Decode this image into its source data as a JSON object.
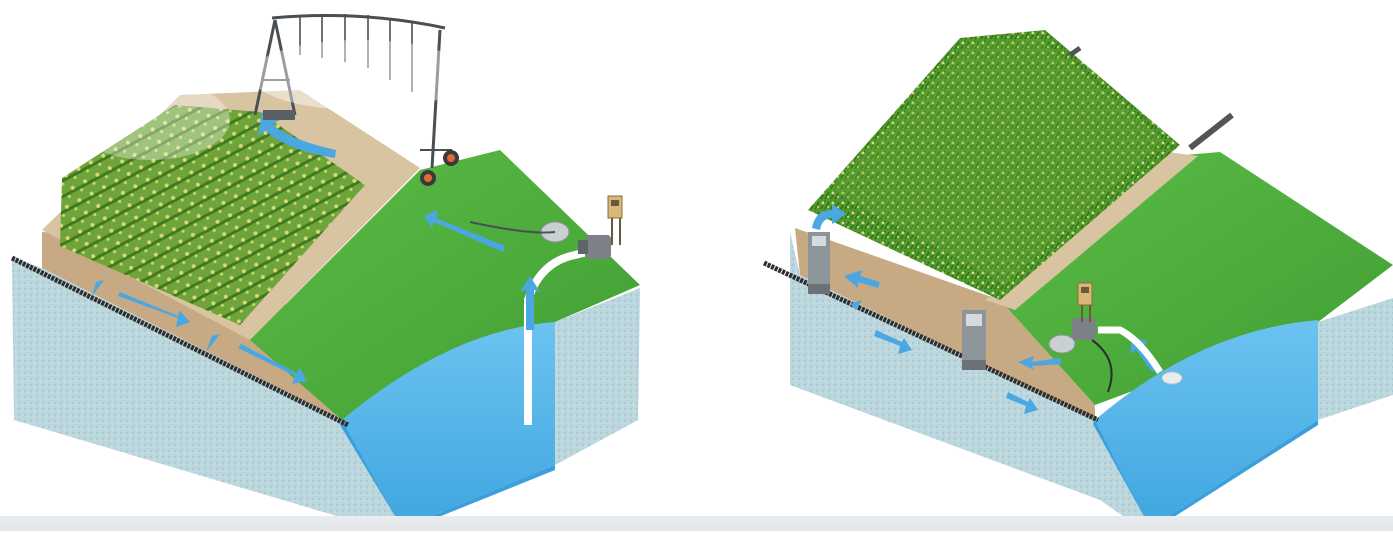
{
  "figure": {
    "panels": [
      {
        "id": "pivot-irrigation-with-tile-drainage",
        "components": [
          "center-pivot-irrigator",
          "corn-field",
          "grass-strip",
          "pump",
          "control-box",
          "tile-drain-pipe",
          "reservoir-pond",
          "water-flow-arrows"
        ]
      },
      {
        "id": "subirrigation-with-control-structures",
        "components": [
          "corn-field",
          "grass-strip",
          "water-control-structures",
          "pump",
          "control-box",
          "tile-drain-pipe",
          "reservoir-pond",
          "water-flow-arrows"
        ]
      }
    ],
    "colors": {
      "grass": "#4fae3c",
      "soil_top": "#d8c3a0",
      "soil_side": "#b89a74",
      "ground_side": "#b9d5dc",
      "water": "#5db8ea",
      "water_dark": "#3e9ed8",
      "arrow": "#4aa7e2",
      "corn": "#5a9a2a",
      "pipe": "#333333",
      "band": "#e6e9eb"
    }
  }
}
